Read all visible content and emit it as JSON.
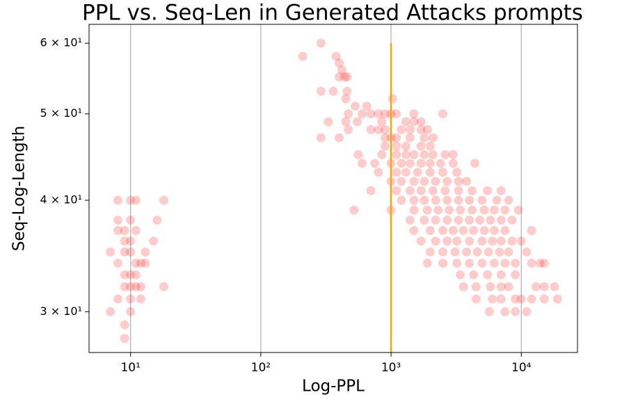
{
  "chart_data": {
    "type": "scatter",
    "title": "PPL vs. Seq-Len in Generated Attacks prompts",
    "xlabel": "Log-PPL",
    "ylabel": "Seq-Log-Length",
    "xscale": "log",
    "yscale": "log",
    "xlim": [
      4.8,
      27000
    ],
    "ylim": [
      27,
      63
    ],
    "xticks": [
      {
        "value": 10,
        "label": "10¹"
      },
      {
        "value": 100,
        "label": "10²"
      },
      {
        "value": 1000,
        "label": "10³"
      },
      {
        "value": 10000,
        "label": "10⁴"
      }
    ],
    "yticks": [
      {
        "value": 30,
        "label": "3 × 10¹"
      },
      {
        "value": 40,
        "label": "4 × 10¹"
      },
      {
        "value": 50,
        "label": "5 × 10¹"
      },
      {
        "value": 60,
        "label": "6 × 10¹"
      }
    ],
    "grid": "x",
    "color": "#ff0000",
    "alpha": 0.2,
    "vline": {
      "x": 1000,
      "ymax": 60,
      "color": "#ffa500"
    },
    "x": [
      8,
      10,
      11,
      18,
      8,
      10,
      16,
      8,
      9,
      11,
      9,
      10,
      15,
      7,
      9,
      10,
      13,
      8,
      11,
      12,
      13,
      9,
      10,
      11,
      9,
      10,
      11,
      12,
      18,
      8,
      10,
      12,
      7,
      10,
      9,
      9,
      290,
      210,
      380,
      400,
      420,
      400,
      440,
      460,
      290,
      360,
      460,
      450,
      1030,
      530,
      650,
      470,
      600,
      700,
      800,
      900,
      1000,
      1100,
      1500,
      2500,
      330,
      450,
      550,
      850,
      1300,
      1500,
      1700,
      470,
      700,
      800,
      900,
      1200,
      1400,
      1700,
      1900,
      290,
      400,
      900,
      1000,
      1100,
      1400,
      1800,
      2100,
      900,
      1100,
      1300,
      1700,
      2000,
      560,
      850,
      1100,
      1300,
      1500,
      1800,
      2100,
      2600,
      3000,
      600,
      750,
      1000,
      1200,
      1400,
      1700,
      2000,
      2400,
      3000,
      4400,
      800,
      1100,
      1300,
      1600,
      2000,
      2500,
      3200,
      1000,
      1200,
      1500,
      1800,
      2200,
      2700,
      3300,
      3800,
      700,
      1100,
      1400,
      1700,
      2100,
      2600,
      3300,
      4200,
      5500,
      7000,
      1200,
      1500,
      1800,
      2200,
      2700,
      3300,
      4000,
      5000,
      6500,
      8000,
      520,
      1000,
      1500,
      1900,
      2300,
      2800,
      3400,
      4200,
      5200,
      6200,
      7500,
      9500,
      1400,
      1800,
      2200,
      2700,
      3300,
      4000,
      4800,
      5800,
      7000,
      8500,
      1500,
      2000,
      2500,
      3000,
      3600,
      4300,
      5200,
      6200,
      7500,
      12000,
      1700,
      2200,
      2700,
      3200,
      4000,
      5000,
      6000,
      7000,
      8500,
      10000,
      2000,
      2500,
      3100,
      3800,
      4600,
      5600,
      6800,
      8000,
      11000,
      1900,
      2500,
      3200,
      4000,
      5000,
      6200,
      7500,
      9000,
      12000,
      14000,
      15000,
      3400,
      4300,
      5500,
      7000,
      9000,
      3600,
      4500,
      5800,
      7000,
      8000,
      13000,
      15000,
      18000,
      4500,
      6000,
      7000,
      9000,
      10000,
      12000,
      15000,
      19000,
      5700,
      7500,
      9000,
      11000
    ],
    "values": [
      40,
      40,
      40,
      40,
      38,
      38,
      38,
      37,
      37,
      37,
      36,
      36,
      36,
      35,
      35,
      35,
      35,
      34,
      34,
      34,
      34,
      33,
      33,
      33,
      32,
      32,
      32,
      32,
      32,
      31,
      31,
      31,
      30,
      30,
      29,
      28,
      60,
      58,
      58,
      57,
      56,
      55,
      55,
      55,
      53,
      53,
      53,
      52,
      52,
      51,
      51,
      50,
      50,
      50,
      50,
      50,
      50,
      50,
      50,
      50,
      49,
      49,
      49,
      49,
      49,
      49,
      49,
      48,
      48,
      48,
      48,
      48,
      48,
      48,
      48,
      47,
      47,
      47,
      47,
      47,
      47,
      47,
      47,
      46,
      46,
      46,
      46,
      46,
      45,
      45,
      45,
      45,
      45,
      45,
      45,
      45,
      45,
      44,
      44,
      44,
      44,
      44,
      44,
      44,
      44,
      44,
      44,
      43,
      43,
      43,
      43,
      43,
      43,
      43,
      42,
      42,
      42,
      42,
      42,
      42,
      42,
      42,
      41,
      41,
      41,
      41,
      41,
      41,
      41,
      41,
      41,
      41,
      40,
      40,
      40,
      40,
      40,
      40,
      40,
      40,
      40,
      40,
      39,
      39,
      39,
      39,
      39,
      39,
      39,
      39,
      39,
      39,
      39,
      39,
      38,
      38,
      38,
      38,
      38,
      38,
      38,
      38,
      38,
      38,
      37,
      37,
      37,
      37,
      37,
      37,
      37,
      37,
      37,
      37,
      36,
      36,
      36,
      36,
      36,
      36,
      36,
      36,
      36,
      36,
      35,
      35,
      35,
      35,
      35,
      35,
      35,
      35,
      35,
      34,
      34,
      34,
      34,
      34,
      34,
      34,
      34,
      34,
      34,
      34,
      33,
      33,
      33,
      33,
      33,
      32,
      32,
      32,
      32,
      32,
      32,
      32,
      32,
      31,
      31,
      31,
      31,
      31,
      31,
      31,
      31,
      30,
      30,
      30,
      30
    ]
  }
}
